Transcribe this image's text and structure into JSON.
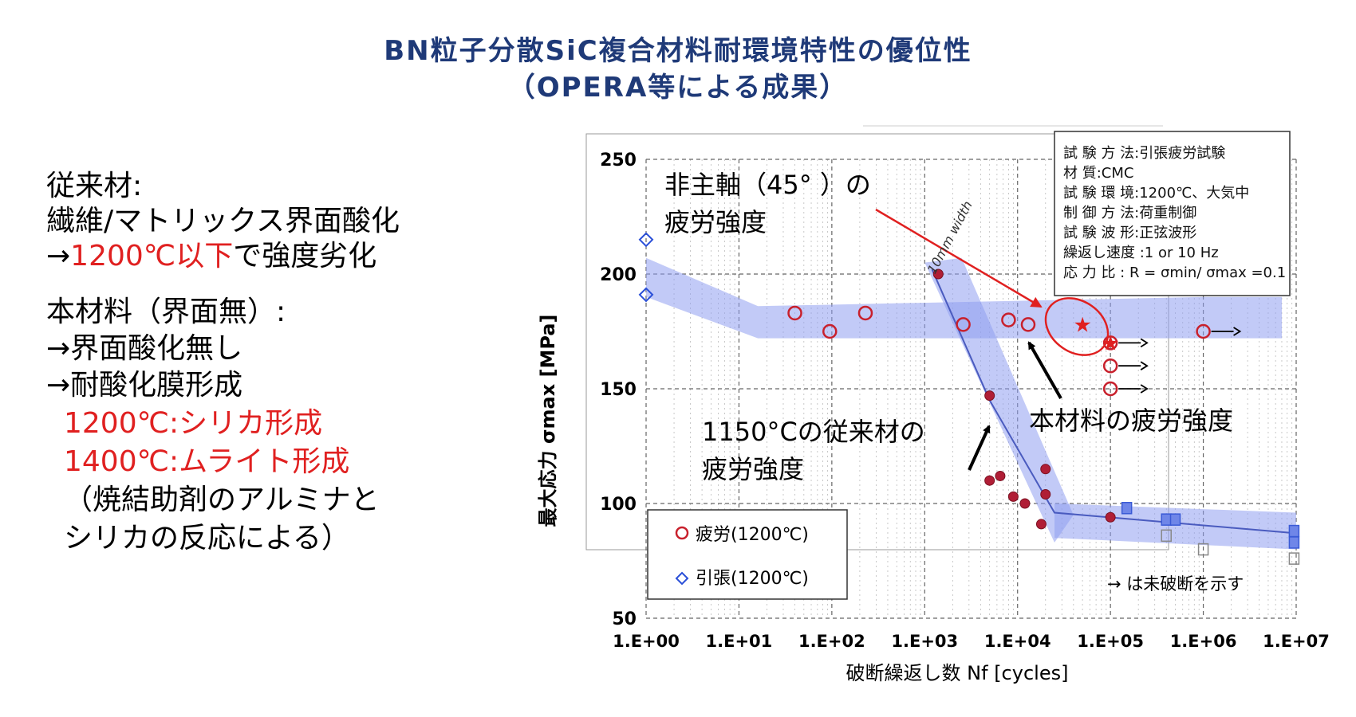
{
  "title_line1": "BN粒子分散SiC複合材料耐環境特性の優位性",
  "title_line2": "（OPERA等による成果）",
  "left_text": {
    "conv_head": "従来材:",
    "conv_1": "繊維/マトリックス界面酸化",
    "conv_2a": "→",
    "conv_2b": "1200℃以下",
    "conv_2c": "で強度劣化",
    "new_head": "本材料（界面無）:",
    "new_1": "→界面酸化無し",
    "new_2": "→耐酸化膜形成",
    "new_3": "1200℃:シリカ形成",
    "new_4": "1400℃:ムライト形成",
    "new_5": "（焼結助剤のアルミナと",
    "new_6": "シリカの反応による）"
  },
  "info_box": [
    "試 験 方 法:引張疲労試験",
    "材        質:CMC",
    "試 験 環 境:1200℃、大気中",
    "制 御 方 法:荷重制御",
    "試 験 波 形:正弦波形",
    "繰返し速度 :1 or 10 Hz",
    "応     力  比 : R = σmin/ σmax =0.1"
  ],
  "annotations": {
    "offaxis_1": "非主軸（45° ）の",
    "offaxis_2": "疲労強度",
    "material": "本材料の疲労強度",
    "conv_1": "1150°Cの従来材の",
    "conv_2": "疲労強度",
    "width_label": "10mm width",
    "runout_note": "→ は未破断を示す"
  },
  "colors": {
    "title": "#1f3a78",
    "red": "#e02020",
    "band": "#8f9ef0",
    "fatigue": "#c8202c",
    "tensile": "#2a4fd8"
  },
  "chart_data": {
    "type": "scatter",
    "xlabel": "破断繰返し数  Nf  [cycles]",
    "ylabel": "最大応力  σmax  [MPa]",
    "x_scale": "log",
    "xlim": [
      1,
      10000000
    ],
    "ylim": [
      50,
      250
    ],
    "x_ticks": [
      "1.E+00",
      "1.E+01",
      "1.E+02",
      "1.E+03",
      "1.E+04",
      "1.E+05",
      "1.E+06",
      "1.E+07"
    ],
    "y_ticks": [
      50,
      100,
      150,
      200,
      250
    ],
    "grid": true,
    "legend_position": "bottom-left",
    "series": [
      {
        "name": "疲労(1200℃)",
        "marker": "circle",
        "points": [
          [
            40,
            183
          ],
          [
            95,
            175
          ],
          [
            230,
            183
          ],
          [
            2600,
            178
          ],
          [
            8000,
            180
          ],
          [
            13000,
            178
          ],
          [
            100000,
            170
          ],
          [
            100000,
            160
          ],
          [
            100000,
            150
          ],
          [
            1000000,
            175
          ]
        ]
      },
      {
        "name": "引張(1200℃)",
        "marker": "diamond",
        "points": [
          [
            1,
            215
          ],
          [
            1,
            191
          ]
        ]
      }
    ],
    "conventional_1150C": [
      [
        1400,
        200
      ],
      [
        5000,
        147
      ],
      [
        6500,
        112
      ],
      [
        9000,
        103
      ],
      [
        20000,
        115
      ],
      [
        20000,
        104
      ],
      [
        18000,
        91
      ],
      [
        100000,
        94
      ],
      [
        12000,
        100
      ],
      [
        5000,
        110
      ]
    ],
    "offaxis_star": [
      [
        50000,
        178
      ],
      [
        100000,
        170
      ]
    ]
  }
}
